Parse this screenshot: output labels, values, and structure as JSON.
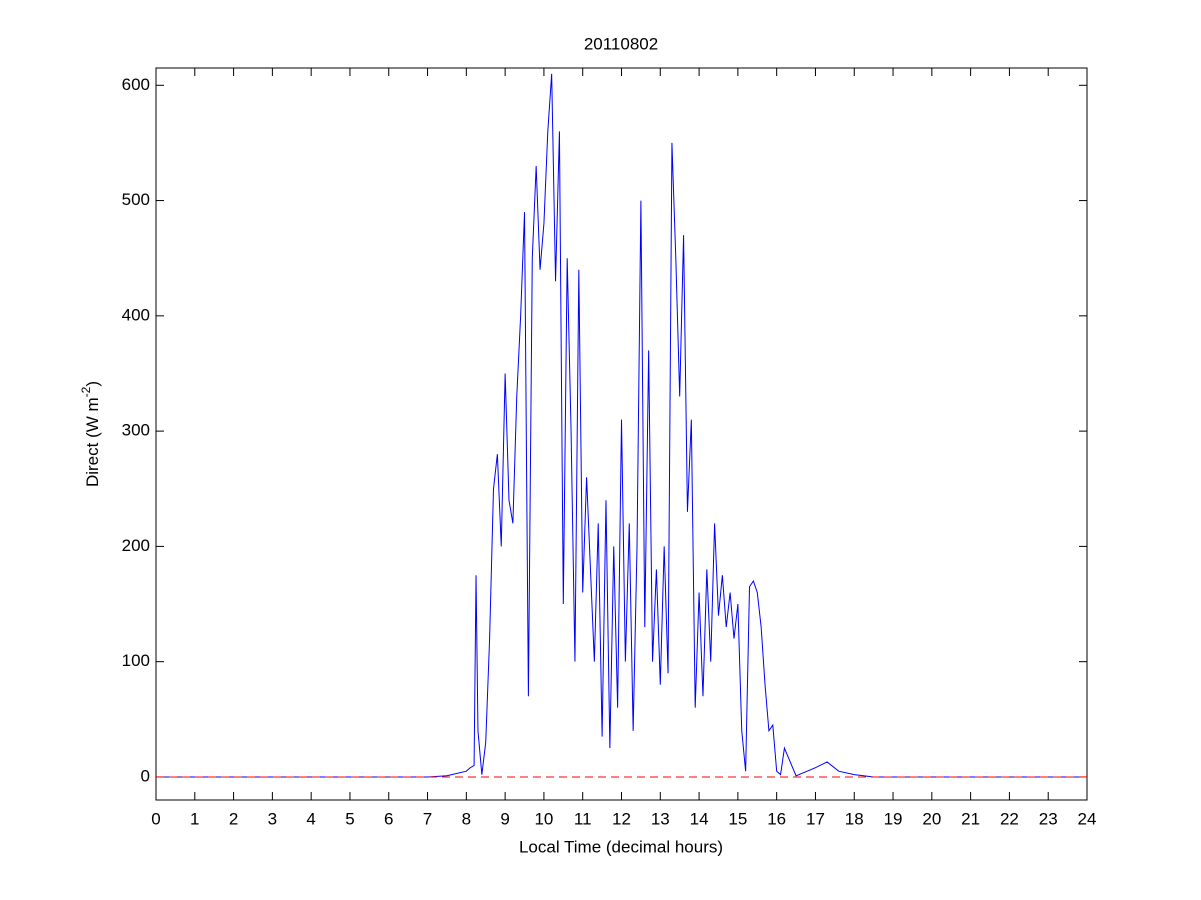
{
  "chart_data": {
    "type": "line",
    "title": "20110802",
    "xlabel": "Local Time (decimal hours)",
    "ylabel": {
      "text": "Direct (W m",
      "superscript": "-2",
      "end": ")"
    },
    "x": [
      0,
      7,
      7.5,
      8.0,
      8.1,
      8.2,
      8.25,
      8.3,
      8.4,
      8.5,
      8.6,
      8.7,
      8.8,
      8.9,
      9.0,
      9.1,
      9.2,
      9.3,
      9.4,
      9.5,
      9.6,
      9.7,
      9.8,
      9.9,
      10.0,
      10.1,
      10.2,
      10.3,
      10.4,
      10.5,
      10.6,
      10.7,
      10.8,
      10.9,
      11.0,
      11.1,
      11.2,
      11.3,
      11.4,
      11.5,
      11.6,
      11.7,
      11.8,
      11.9,
      12.0,
      12.1,
      12.2,
      12.3,
      12.4,
      12.5,
      12.6,
      12.7,
      12.8,
      12.9,
      13.0,
      13.1,
      13.2,
      13.3,
      13.4,
      13.5,
      13.6,
      13.7,
      13.8,
      13.9,
      14.0,
      14.1,
      14.2,
      14.3,
      14.4,
      14.5,
      14.6,
      14.7,
      14.8,
      14.9,
      15.0,
      15.1,
      15.2,
      15.3,
      15.4,
      15.5,
      15.6,
      15.7,
      15.8,
      15.9,
      16.0,
      16.1,
      16.2,
      16.5,
      17.0,
      17.3,
      17.6,
      18.0,
      18.5,
      19,
      24
    ],
    "series": [
      {
        "color": "#0000ff",
        "values": [
          0,
          0,
          1,
          5,
          8,
          10,
          175,
          40,
          2,
          30,
          120,
          250,
          280,
          200,
          350,
          240,
          220,
          330,
          400,
          490,
          70,
          450,
          530,
          440,
          480,
          560,
          610,
          430,
          560,
          150,
          450,
          300,
          100,
          440,
          160,
          260,
          180,
          100,
          220,
          35,
          240,
          25,
          200,
          60,
          310,
          100,
          220,
          40,
          200,
          500,
          130,
          370,
          100,
          180,
          80,
          200,
          90,
          550,
          450,
          330,
          470,
          230,
          310,
          60,
          160,
          70,
          180,
          100,
          220,
          140,
          175,
          130,
          160,
          120,
          150,
          40,
          5,
          165,
          170,
          160,
          130,
          80,
          40,
          45,
          5,
          2,
          25,
          1,
          8,
          13,
          5,
          2,
          0,
          0,
          0
        ]
      }
    ],
    "reference_line": {
      "value": 0,
      "color": "#ff0000",
      "style": "dashed"
    },
    "xlim": [
      0,
      24
    ],
    "xticks": [
      0,
      1,
      2,
      3,
      4,
      5,
      6,
      7,
      8,
      9,
      10,
      11,
      12,
      13,
      14,
      15,
      16,
      17,
      18,
      19,
      20,
      21,
      22,
      23,
      24
    ],
    "ylim": [
      -20,
      615
    ],
    "yticks": [
      0,
      100,
      200,
      300,
      400,
      500,
      600
    ],
    "grid": false
  }
}
